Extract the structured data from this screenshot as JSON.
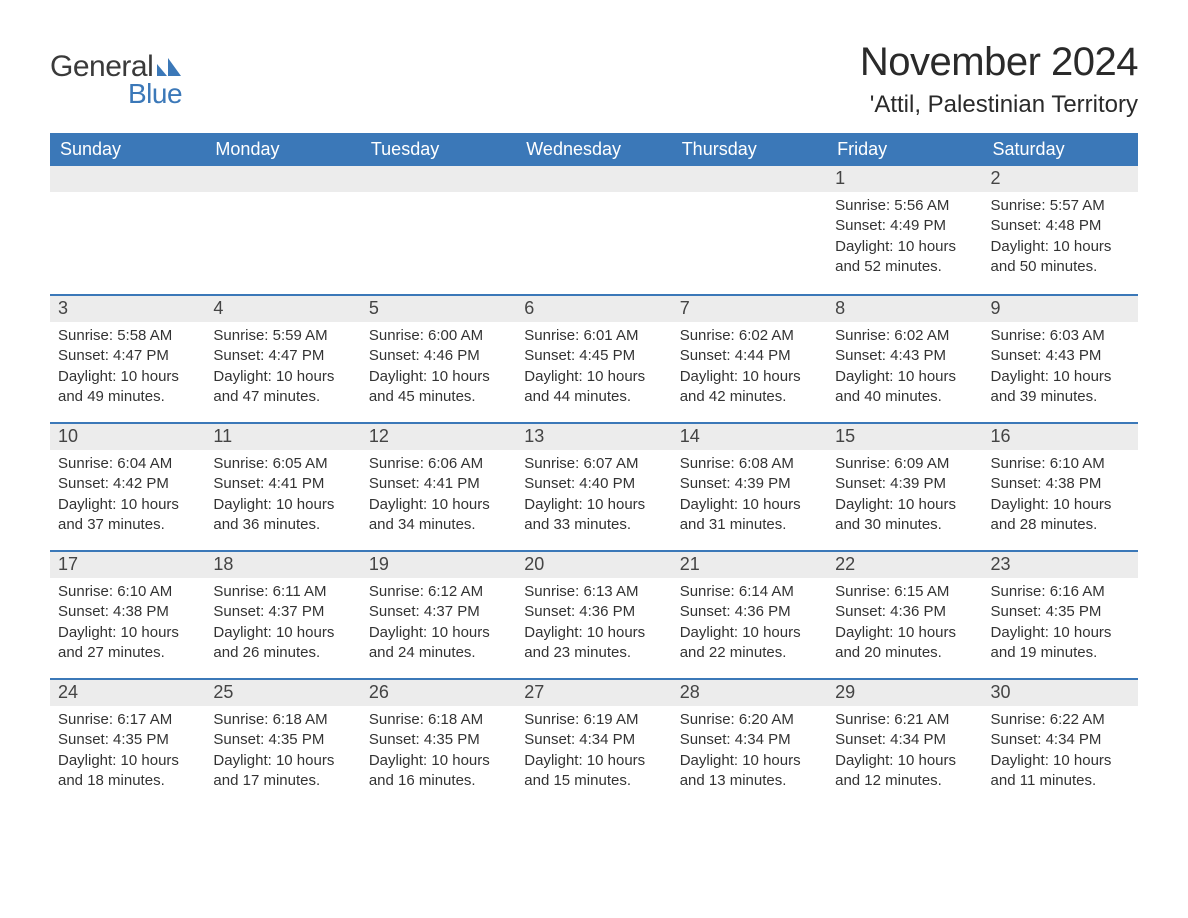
{
  "logo": {
    "text1": "General",
    "text2": "Blue",
    "icon_color": "#3b78b8"
  },
  "title": "November 2024",
  "location": "'Attil, Palestinian Territory",
  "colors": {
    "header_bg": "#3b78b8",
    "header_text": "#ffffff",
    "daynum_bg": "#ececec",
    "border": "#3b78b8",
    "text": "#333333"
  },
  "layout": {
    "columns": 7,
    "rows": 5,
    "first_day_column": 5
  },
  "day_names": [
    "Sunday",
    "Monday",
    "Tuesday",
    "Wednesday",
    "Thursday",
    "Friday",
    "Saturday"
  ],
  "days": [
    {
      "n": 1,
      "sunrise": "5:56 AM",
      "sunset": "4:49 PM",
      "daylight": "10 hours and 52 minutes."
    },
    {
      "n": 2,
      "sunrise": "5:57 AM",
      "sunset": "4:48 PM",
      "daylight": "10 hours and 50 minutes."
    },
    {
      "n": 3,
      "sunrise": "5:58 AM",
      "sunset": "4:47 PM",
      "daylight": "10 hours and 49 minutes."
    },
    {
      "n": 4,
      "sunrise": "5:59 AM",
      "sunset": "4:47 PM",
      "daylight": "10 hours and 47 minutes."
    },
    {
      "n": 5,
      "sunrise": "6:00 AM",
      "sunset": "4:46 PM",
      "daylight": "10 hours and 45 minutes."
    },
    {
      "n": 6,
      "sunrise": "6:01 AM",
      "sunset": "4:45 PM",
      "daylight": "10 hours and 44 minutes."
    },
    {
      "n": 7,
      "sunrise": "6:02 AM",
      "sunset": "4:44 PM",
      "daylight": "10 hours and 42 minutes."
    },
    {
      "n": 8,
      "sunrise": "6:02 AM",
      "sunset": "4:43 PM",
      "daylight": "10 hours and 40 minutes."
    },
    {
      "n": 9,
      "sunrise": "6:03 AM",
      "sunset": "4:43 PM",
      "daylight": "10 hours and 39 minutes."
    },
    {
      "n": 10,
      "sunrise": "6:04 AM",
      "sunset": "4:42 PM",
      "daylight": "10 hours and 37 minutes."
    },
    {
      "n": 11,
      "sunrise": "6:05 AM",
      "sunset": "4:41 PM",
      "daylight": "10 hours and 36 minutes."
    },
    {
      "n": 12,
      "sunrise": "6:06 AM",
      "sunset": "4:41 PM",
      "daylight": "10 hours and 34 minutes."
    },
    {
      "n": 13,
      "sunrise": "6:07 AM",
      "sunset": "4:40 PM",
      "daylight": "10 hours and 33 minutes."
    },
    {
      "n": 14,
      "sunrise": "6:08 AM",
      "sunset": "4:39 PM",
      "daylight": "10 hours and 31 minutes."
    },
    {
      "n": 15,
      "sunrise": "6:09 AM",
      "sunset": "4:39 PM",
      "daylight": "10 hours and 30 minutes."
    },
    {
      "n": 16,
      "sunrise": "6:10 AM",
      "sunset": "4:38 PM",
      "daylight": "10 hours and 28 minutes."
    },
    {
      "n": 17,
      "sunrise": "6:10 AM",
      "sunset": "4:38 PM",
      "daylight": "10 hours and 27 minutes."
    },
    {
      "n": 18,
      "sunrise": "6:11 AM",
      "sunset": "4:37 PM",
      "daylight": "10 hours and 26 minutes."
    },
    {
      "n": 19,
      "sunrise": "6:12 AM",
      "sunset": "4:37 PM",
      "daylight": "10 hours and 24 minutes."
    },
    {
      "n": 20,
      "sunrise": "6:13 AM",
      "sunset": "4:36 PM",
      "daylight": "10 hours and 23 minutes."
    },
    {
      "n": 21,
      "sunrise": "6:14 AM",
      "sunset": "4:36 PM",
      "daylight": "10 hours and 22 minutes."
    },
    {
      "n": 22,
      "sunrise": "6:15 AM",
      "sunset": "4:36 PM",
      "daylight": "10 hours and 20 minutes."
    },
    {
      "n": 23,
      "sunrise": "6:16 AM",
      "sunset": "4:35 PM",
      "daylight": "10 hours and 19 minutes."
    },
    {
      "n": 24,
      "sunrise": "6:17 AM",
      "sunset": "4:35 PM",
      "daylight": "10 hours and 18 minutes."
    },
    {
      "n": 25,
      "sunrise": "6:18 AM",
      "sunset": "4:35 PM",
      "daylight": "10 hours and 17 minutes."
    },
    {
      "n": 26,
      "sunrise": "6:18 AM",
      "sunset": "4:35 PM",
      "daylight": "10 hours and 16 minutes."
    },
    {
      "n": 27,
      "sunrise": "6:19 AM",
      "sunset": "4:34 PM",
      "daylight": "10 hours and 15 minutes."
    },
    {
      "n": 28,
      "sunrise": "6:20 AM",
      "sunset": "4:34 PM",
      "daylight": "10 hours and 13 minutes."
    },
    {
      "n": 29,
      "sunrise": "6:21 AM",
      "sunset": "4:34 PM",
      "daylight": "10 hours and 12 minutes."
    },
    {
      "n": 30,
      "sunrise": "6:22 AM",
      "sunset": "4:34 PM",
      "daylight": "10 hours and 11 minutes."
    }
  ],
  "labels": {
    "sunrise": "Sunrise: ",
    "sunset": "Sunset: ",
    "daylight": "Daylight: "
  }
}
